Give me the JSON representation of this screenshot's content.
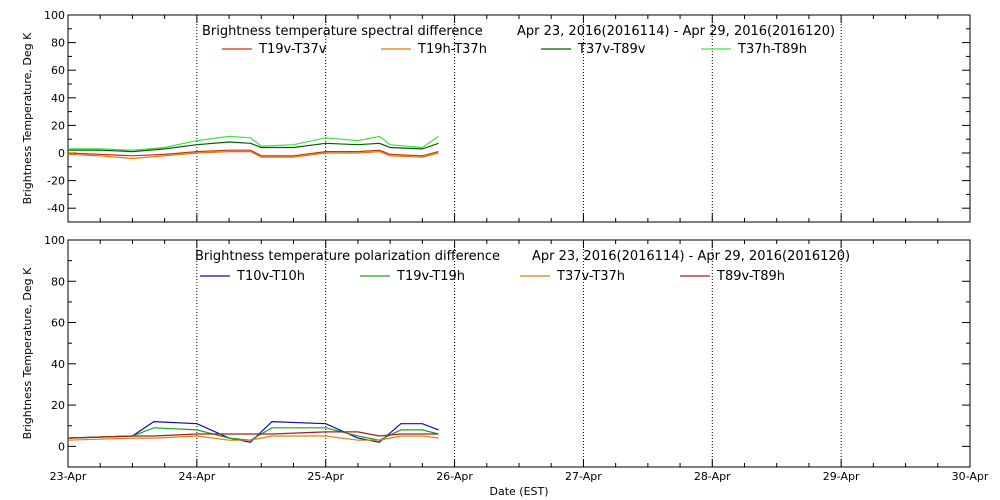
{
  "chart_data": [
    {
      "type": "line",
      "title": "Brightness temperature spectral difference",
      "date_range": "Apr 23, 2016(2016114) - Apr 29, 2016(2016120)",
      "ylabel": "Brightness Temperature, Deg K",
      "xlabel": "",
      "xlim": [
        "2016-04-23",
        "2016-04-30"
      ],
      "ylim": [
        -50,
        100
      ],
      "yticks": [
        -40,
        -20,
        0,
        20,
        40,
        60,
        80,
        100
      ],
      "x_tick_labels": [
        "23-Apr",
        "24-Apr",
        "25-Apr",
        "26-Apr",
        "27-Apr",
        "28-Apr",
        "29-Apr",
        "30-Apr"
      ],
      "grid": "vertical dotted at each day",
      "legend": "top",
      "series": [
        {
          "name": "T19v-T37v",
          "color": "#d03010",
          "x": [
            "2016-04-23T00:00",
            "2016-04-23T06:00",
            "2016-04-23T12:00",
            "2016-04-23T18:00",
            "2016-04-24T00:00",
            "2016-04-24T06:00",
            "2016-04-24T10:00",
            "2016-04-24T12:00",
            "2016-04-24T18:00",
            "2016-04-25T00:00",
            "2016-04-25T06:00",
            "2016-04-25T10:00",
            "2016-04-25T12:00",
            "2016-04-25T18:00",
            "2016-04-25T21:00"
          ],
          "y": [
            0,
            -1,
            -2,
            -1,
            1,
            2,
            2,
            -2,
            -2,
            1,
            1,
            2,
            -1,
            -2,
            1
          ]
        },
        {
          "name": "T19h-T37h",
          "color": "#e07800",
          "x": [
            "2016-04-23T00:00",
            "2016-04-23T06:00",
            "2016-04-23T12:00",
            "2016-04-23T18:00",
            "2016-04-24T00:00",
            "2016-04-24T06:00",
            "2016-04-24T10:00",
            "2016-04-24T12:00",
            "2016-04-24T18:00",
            "2016-04-25T00:00",
            "2016-04-25T06:00",
            "2016-04-25T10:00",
            "2016-04-25T12:00",
            "2016-04-25T18:00",
            "2016-04-25T21:00"
          ],
          "y": [
            -1,
            -2,
            -4,
            -2,
            0,
            1,
            1,
            -3,
            -3,
            0,
            0,
            1,
            -2,
            -3,
            0
          ]
        },
        {
          "name": "T37v-T89v",
          "color": "#006000",
          "x": [
            "2016-04-23T00:00",
            "2016-04-23T06:00",
            "2016-04-23T12:00",
            "2016-04-23T18:00",
            "2016-04-24T00:00",
            "2016-04-24T06:00",
            "2016-04-24T10:00",
            "2016-04-24T12:00",
            "2016-04-24T18:00",
            "2016-04-25T00:00",
            "2016-04-25T06:00",
            "2016-04-25T10:00",
            "2016-04-25T12:00",
            "2016-04-25T18:00",
            "2016-04-25T21:00"
          ],
          "y": [
            2,
            2,
            1,
            3,
            6,
            8,
            7,
            4,
            4,
            7,
            6,
            7,
            4,
            3,
            7
          ]
        },
        {
          "name": "T37h-T89h",
          "color": "#40e040",
          "x": [
            "2016-04-23T00:00",
            "2016-04-23T06:00",
            "2016-04-23T12:00",
            "2016-04-23T18:00",
            "2016-04-24T00:00",
            "2016-04-24T06:00",
            "2016-04-24T10:00",
            "2016-04-24T12:00",
            "2016-04-24T18:00",
            "2016-04-25T00:00",
            "2016-04-25T06:00",
            "2016-04-25T10:00",
            "2016-04-25T12:00",
            "2016-04-25T18:00",
            "2016-04-25T21:00"
          ],
          "y": [
            3,
            3,
            2,
            4,
            9,
            12,
            11,
            5,
            6,
            11,
            9,
            12,
            6,
            4,
            12
          ]
        }
      ]
    },
    {
      "type": "line",
      "title": "Brightness temperature polarization difference",
      "date_range": "Apr 23, 2016(2016114) - Apr 29, 2016(2016120)",
      "ylabel": "Brightness Temperature, Deg K",
      "xlabel": "Date (EST)",
      "xlim": [
        "2016-04-23",
        "2016-04-30"
      ],
      "ylim": [
        -10,
        100
      ],
      "yticks": [
        0,
        20,
        40,
        60,
        80,
        100
      ],
      "x_tick_labels": [
        "23-Apr",
        "24-Apr",
        "25-Apr",
        "26-Apr",
        "27-Apr",
        "28-Apr",
        "29-Apr",
        "30-Apr"
      ],
      "grid": "vertical dotted at each day",
      "legend": "top",
      "series": [
        {
          "name": "T10v-T10h",
          "color": "#1010a0",
          "x": [
            "2016-04-23T00:00",
            "2016-04-23T12:00",
            "2016-04-23T16:00",
            "2016-04-24T00:00",
            "2016-04-24T06:00",
            "2016-04-24T10:00",
            "2016-04-24T14:00",
            "2016-04-25T00:00",
            "2016-04-25T06:00",
            "2016-04-25T10:00",
            "2016-04-25T14:00",
            "2016-04-25T18:00",
            "2016-04-25T21:00"
          ],
          "y": [
            4,
            5,
            12,
            11,
            4,
            2,
            12,
            11,
            4,
            2,
            11,
            11,
            8
          ]
        },
        {
          "name": "T19v-T19h",
          "color": "#20a020",
          "x": [
            "2016-04-23T00:00",
            "2016-04-23T12:00",
            "2016-04-23T16:00",
            "2016-04-24T00:00",
            "2016-04-24T06:00",
            "2016-04-24T10:00",
            "2016-04-24T14:00",
            "2016-04-25T00:00",
            "2016-04-25T06:00",
            "2016-04-25T10:00",
            "2016-04-25T14:00",
            "2016-04-25T18:00",
            "2016-04-25T21:00"
          ],
          "y": [
            4,
            5,
            9,
            8,
            4,
            3,
            9,
            9,
            5,
            3,
            8,
            8,
            6
          ]
        },
        {
          "name": "T37v-T37h",
          "color": "#e08010",
          "x": [
            "2016-04-23T00:00",
            "2016-04-23T12:00",
            "2016-04-23T16:00",
            "2016-04-24T00:00",
            "2016-04-24T06:00",
            "2016-04-24T10:00",
            "2016-04-24T14:00",
            "2016-04-25T00:00",
            "2016-04-25T06:00",
            "2016-04-25T10:00",
            "2016-04-25T14:00",
            "2016-04-25T18:00",
            "2016-04-25T21:00"
          ],
          "y": [
            3,
            4,
            4,
            5,
            3,
            3,
            5,
            5,
            3,
            3,
            5,
            5,
            4
          ]
        },
        {
          "name": "T89v-T89h",
          "color": "#a02020",
          "x": [
            "2016-04-23T00:00",
            "2016-04-23T12:00",
            "2016-04-23T16:00",
            "2016-04-24T00:00",
            "2016-04-24T06:00",
            "2016-04-24T10:00",
            "2016-04-24T14:00",
            "2016-04-25T00:00",
            "2016-04-25T06:00",
            "2016-04-25T10:00",
            "2016-04-25T14:00",
            "2016-04-25T18:00",
            "2016-04-25T21:00"
          ],
          "y": [
            4,
            5,
            5,
            6,
            6,
            6,
            6,
            7,
            7,
            5,
            6,
            6,
            6
          ]
        }
      ]
    }
  ]
}
